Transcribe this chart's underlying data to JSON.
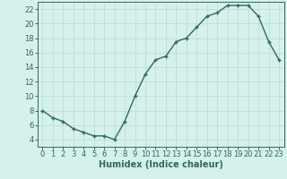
{
  "x": [
    0,
    1,
    2,
    3,
    4,
    5,
    6,
    7,
    8,
    9,
    10,
    11,
    12,
    13,
    14,
    15,
    16,
    17,
    18,
    19,
    20,
    21,
    22,
    23
  ],
  "y": [
    8,
    7,
    6.5,
    5.5,
    5,
    4.5,
    4.5,
    4,
    6.5,
    10,
    13,
    15,
    15.5,
    17.5,
    18,
    19.5,
    21,
    21.5,
    22.5,
    22.5,
    22.5,
    21,
    17.5,
    15
  ],
  "line_color": "#2d6b5a",
  "marker": "+",
  "bg_color": "#d6f0ee",
  "grid_color": "#b8d8d4",
  "xlabel": "Humidex (Indice chaleur)",
  "xlim": [
    -0.5,
    23.5
  ],
  "ylim": [
    3,
    23
  ],
  "yticks": [
    4,
    6,
    8,
    10,
    12,
    14,
    16,
    18,
    20,
    22
  ],
  "xticks": [
    0,
    1,
    2,
    3,
    4,
    5,
    6,
    7,
    8,
    9,
    10,
    11,
    12,
    13,
    14,
    15,
    16,
    17,
    18,
    19,
    20,
    21,
    22,
    23
  ],
  "xlabel_fontsize": 7.0,
  "tick_fontsize": 6.0,
  "line_width": 1.0,
  "marker_size": 3.5
}
